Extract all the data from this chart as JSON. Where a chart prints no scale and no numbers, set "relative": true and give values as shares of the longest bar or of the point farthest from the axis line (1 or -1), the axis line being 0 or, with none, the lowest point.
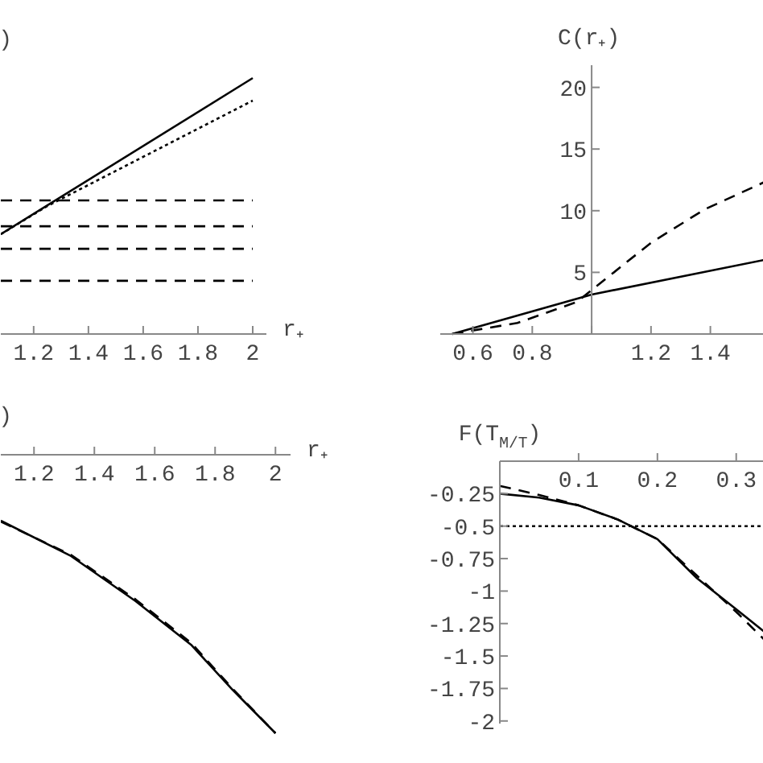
{
  "chart_data": [
    {
      "type": "line",
      "relative": true,
      "xlabel": "r₊",
      "ylabel": ")",
      "xlim": [
        1.08,
        2.05
      ],
      "xticks": [
        1.2,
        1.4,
        1.6,
        1.8,
        2
      ],
      "tick_labels": "x",
      "series": [
        {
          "color": "#000000",
          "line_style": "solid",
          "x": [
            1.08,
            2
          ],
          "values": [
            0.39,
            1
          ]
        },
        {
          "color": "#000000",
          "line_style": "dotted",
          "x": [
            1.08,
            1.25,
            2
          ],
          "values": [
            0.39,
            0.5,
            0.912
          ]
        },
        {
          "color": "#000000",
          "line_style": "dashed",
          "x": [
            1.08,
            2
          ],
          "values": [
            0.522,
            0.522
          ]
        },
        {
          "color": "#000000",
          "line_style": "dashed",
          "x": [
            1.08,
            2
          ],
          "values": [
            0.421,
            0.421
          ]
        },
        {
          "color": "#000000",
          "line_style": "dashed",
          "x": [
            1.08,
            2
          ],
          "values": [
            0.333,
            0.333
          ]
        },
        {
          "color": "#000000",
          "line_style": "dashed",
          "x": [
            1.08,
            2
          ],
          "values": [
            0.208,
            0.208
          ]
        }
      ]
    },
    {
      "type": "line",
      "ylabel": "C(r₊)",
      "xlim": [
        0.49,
        1.58
      ],
      "ylim": [
        0,
        21.8
      ],
      "xticks": [
        0.6,
        0.8,
        {
          "value": 1,
          "label": null
        },
        1.2,
        1.4
      ],
      "yticks": [
        {
          "value": 0,
          "label": null
        },
        5,
        10,
        15,
        20
      ],
      "series": [
        {
          "color": "#000000",
          "line_style": "solid",
          "x": [
            0.53,
            1.0,
            1.58
          ],
          "values": [
            0,
            3.2,
            6.0
          ]
        },
        {
          "color": "#000000",
          "line_style": "dashed",
          "x": [
            0.53,
            0.75,
            0.95,
            1.2,
            1.38,
            1.58
          ],
          "values": [
            0,
            0.9,
            2.6,
            7.4,
            10.1,
            12.3
          ]
        }
      ]
    },
    {
      "type": "line",
      "relative": true,
      "xlabel": "r₊",
      "ylabel": ")",
      "xlim": [
        1.09,
        2.05
      ],
      "xticks": [
        1.2,
        1.4,
        1.6,
        1.8,
        2
      ],
      "tick_labels": "x",
      "series": [
        {
          "color": "#000000",
          "line_style": "solid",
          "x": [
            1.09,
            1.323,
            1.537,
            1.72,
            1.858,
            2.0
          ],
          "values": [
            -0.237,
            -0.364,
            -0.526,
            -0.682,
            -0.844,
            -1
          ]
        },
        {
          "color": "#000000",
          "line_style": "dashed",
          "x": [
            1.09,
            1.323,
            1.537,
            1.72,
            1.858,
            2.0
          ],
          "values": [
            -0.24,
            -0.36,
            -0.52,
            -0.675,
            -0.84,
            -1
          ]
        }
      ]
    },
    {
      "type": "line",
      "ylabel": "F(T$_{M/T}$)",
      "xlim": [
        0,
        0.335
      ],
      "ylim": [
        -2.02,
        0
      ],
      "xticks": [
        0.1,
        0.2,
        0.3
      ],
      "yticks": [
        {
          "value": 0,
          "label": null
        },
        -0.25,
        -0.5,
        -0.75,
        -1,
        -1.25,
        -1.5,
        -1.75,
        -2
      ],
      "ref_lines": [
        {
          "axis": "y",
          "value": -0.5,
          "line_style": "dotted",
          "color": "#000000"
        }
      ],
      "series": [
        {
          "color": "#000000",
          "line_style": "solid",
          "x": [
            0,
            0.05,
            0.1,
            0.15,
            0.2,
            0.25,
            0.3,
            0.335
          ],
          "values": [
            -0.25,
            -0.28,
            -0.34,
            -0.45,
            -0.6,
            -0.9,
            -1.14,
            -1.31
          ]
        },
        {
          "color": "#000000",
          "line_style": "dashed",
          "x": [
            0,
            0.05,
            0.1,
            0.15,
            0.2,
            0.25,
            0.3,
            0.335
          ],
          "values": [
            -0.19,
            -0.26,
            -0.34,
            -0.45,
            -0.6,
            -0.88,
            -1.16,
            -1.37
          ]
        }
      ]
    }
  ]
}
